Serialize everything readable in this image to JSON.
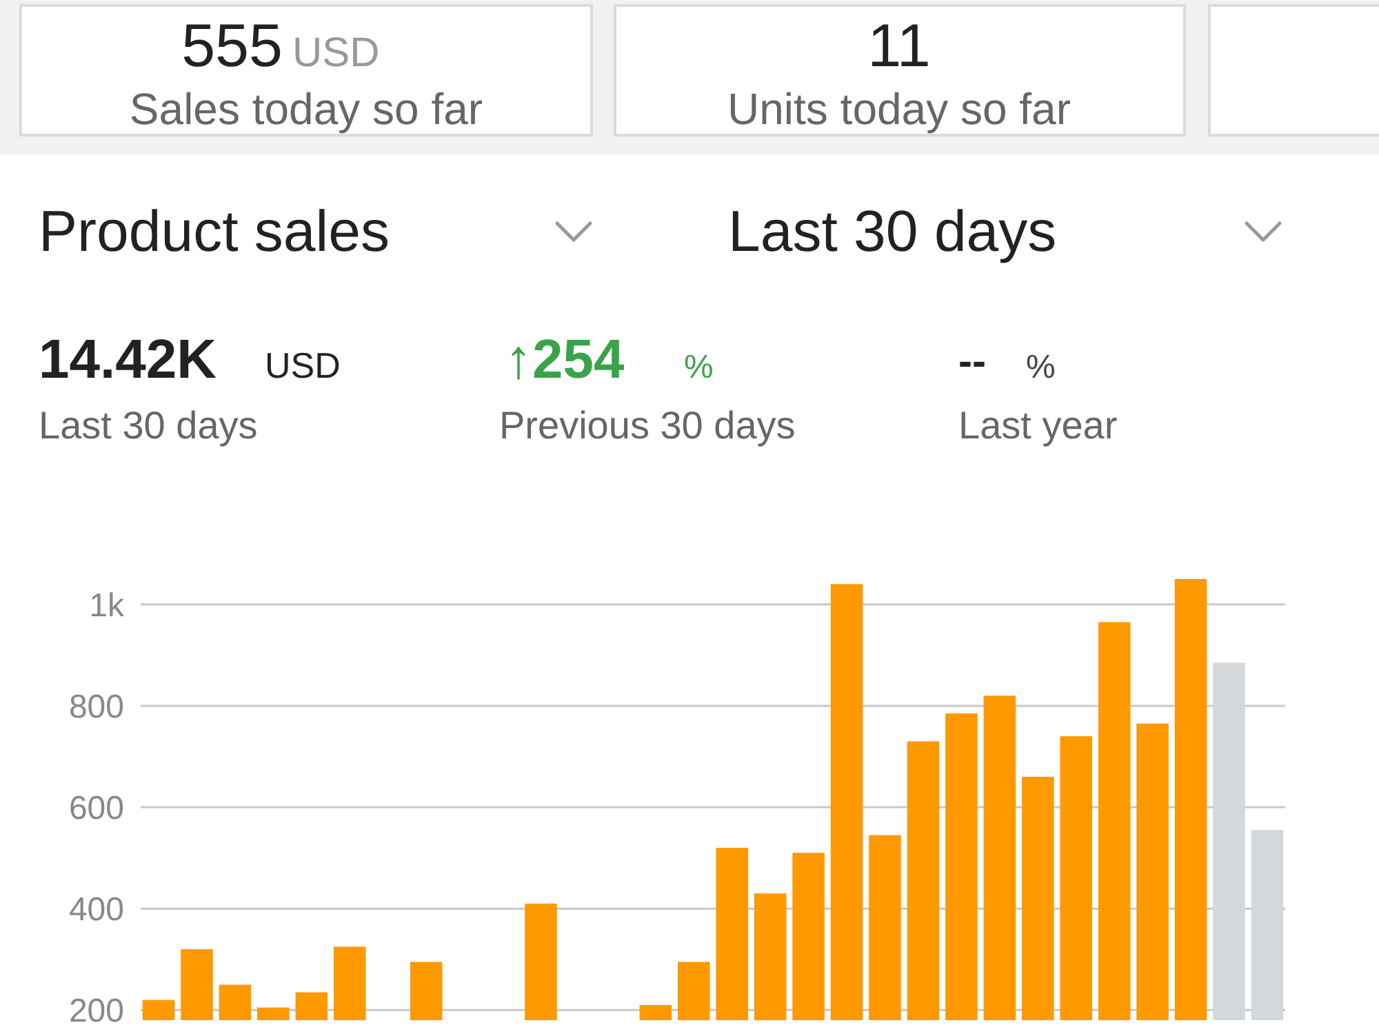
{
  "chart_data": {
    "type": "bar",
    "title": "Product sales",
    "subtitle": "Last 30 days",
    "annotations": [
      "555",
      "USD",
      "Sales today so far",
      "11",
      "Units today so far",
      "14.42K",
      "USD",
      "↑254",
      "%",
      "--",
      "%",
      "Last 30 days",
      "Previous 30 days",
      "Last year"
    ],
    "categories": [
      null,
      null,
      null,
      null,
      null,
      null,
      null,
      null,
      null,
      null,
      null,
      null,
      null,
      null,
      null,
      null,
      null,
      null,
      null,
      null,
      null,
      null,
      null,
      null,
      null,
      null,
      null,
      null,
      null,
      null
    ],
    "values": [
      220,
      320,
      250,
      205,
      235,
      325,
      null,
      295,
      null,
      null,
      410,
      null,
      null,
      210,
      295,
      520,
      430,
      510,
      1040,
      545,
      730,
      785,
      820,
      660,
      740,
      965,
      765,
      1050,
      885,
      555
    ],
    "colors": [
      "#ff9900",
      "#ff9900",
      "#ff9900",
      "#ff9900",
      "#ff9900",
      "#ff9900",
      null,
      "#ff9900",
      null,
      null,
      "#ff9900",
      null,
      null,
      "#ff9900",
      "#ff9900",
      "#ff9900",
      "#ff9900",
      "#ff9900",
      "#ff9900",
      "#ff9900",
      "#ff9900",
      "#ff9900",
      "#ff9900",
      "#ff9900",
      "#ff9900",
      "#ff9900",
      "#ff9900",
      "#ff9900",
      "#d5d8da",
      "#d5d8da"
    ],
    "ylim": [
      180,
      1050
    ],
    "yticks": [
      200,
      400,
      600,
      800,
      {
        "value": 1000,
        "label": "1k"
      }
    ],
    "grid": "y"
  }
}
